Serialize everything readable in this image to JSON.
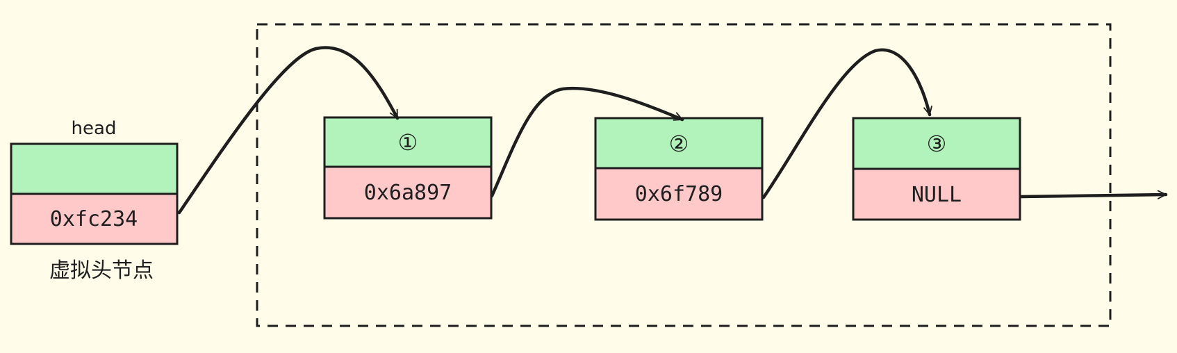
{
  "diagram": {
    "head_label": "head",
    "dummy_node_label": "虚拟头节点",
    "dummy_node": {
      "value": "",
      "next": "0xfc234"
    },
    "nodes": [
      {
        "value": "①",
        "next": "0x6a897"
      },
      {
        "value": "②",
        "next": "0x6f789"
      },
      {
        "value": "③",
        "next": "NULL"
      }
    ]
  },
  "colors": {
    "background": "#fffce9",
    "value_cell": "#b2f2bb",
    "pointer_cell": "#ffc9c9",
    "stroke": "#1e1e1e"
  }
}
